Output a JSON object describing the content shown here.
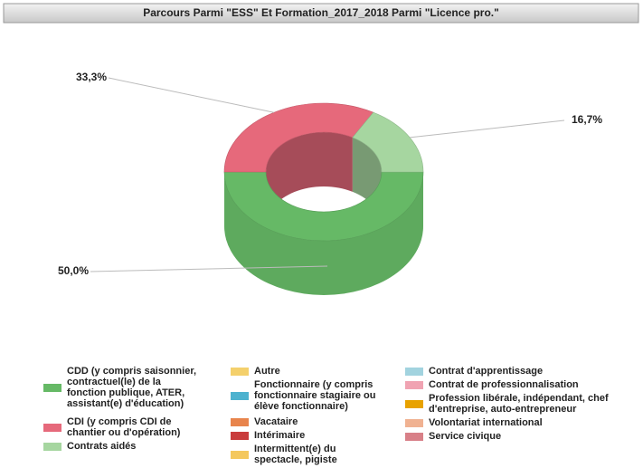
{
  "chart_data": {
    "type": "pie",
    "donut": true,
    "title": "Parcours Parmi \"ESS\" Et Formation_2017_2018 Parmi \"Licence pro.\"",
    "categories": [
      "CDD (y compris saisonnier, contractuel(le) de la fonction publique, ATER, assistant(e) d'éducation)",
      "CDI (y compris CDI de chantier ou d'opération)",
      "Contrats aidés",
      "Autre",
      "Fonctionnaire (y compris fonctionnaire stagiaire ou élève fonctionnaire)",
      "Vacataire",
      "Intérimaire",
      "Intermittent(e) du spectacle, pigiste",
      "Contrat d'apprentissage",
      "Contrat de professionnalisation",
      "Profession libérale, indépendant, chef d'entreprise, auto-entrepreneur",
      "Volontariat international",
      "Service civique"
    ],
    "values": [
      50.0,
      33.3,
      16.7,
      0,
      0,
      0,
      0,
      0,
      0,
      0,
      0,
      0,
      0
    ],
    "value_labels": [
      "50,0%",
      "33,3%",
      "16,7%",
      null,
      null,
      null,
      null,
      null,
      null,
      null,
      null,
      null,
      null
    ],
    "colors": [
      "#66b966",
      "#e6697b",
      "#a6d6a0",
      "#f4d06c",
      "#4db2cf",
      "#e8844c",
      "#c93c3c",
      "#f4c85e",
      "#a2d3df",
      "#f0a3b2",
      "#e8a200",
      "#f0b292",
      "#d88088"
    ]
  }
}
